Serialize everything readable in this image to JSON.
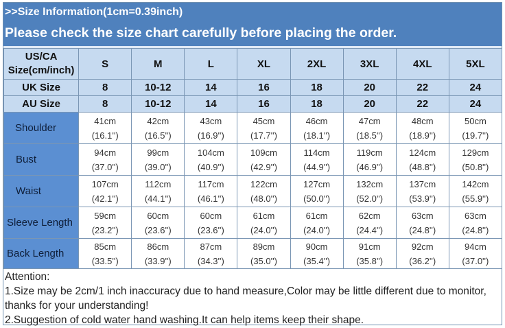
{
  "header": {
    "title": ">>Size Information(1cm=0.39inch)",
    "subtitle": "Please check the size chart carefully before placing the order."
  },
  "table": {
    "corner": [
      "US/CA",
      "Size(cm/inch)"
    ],
    "sizes": [
      "S",
      "M",
      "L",
      "XL",
      "2XL",
      "3XL",
      "4XL",
      "5XL"
    ],
    "uk": {
      "label": "UK Size",
      "values": [
        "8",
        "10-12",
        "14",
        "16",
        "18",
        "20",
        "22",
        "24"
      ]
    },
    "au": {
      "label": "AU Size",
      "values": [
        "8",
        "10-12",
        "14",
        "16",
        "18",
        "20",
        "22",
        "24"
      ]
    },
    "rows": [
      {
        "label": "Shoulder",
        "cm": [
          "41cm",
          "42cm",
          "43cm",
          "45cm",
          "46cm",
          "47cm",
          "48cm",
          "50cm"
        ],
        "inch": [
          "(16.1'')",
          "(16.5'')",
          "(16.9'')",
          "(17.7'')",
          "(18.1'')",
          "(18.5'')",
          "(18.9'')",
          "(19.7'')"
        ]
      },
      {
        "label": "Bust",
        "cm": [
          "94cm",
          "99cm",
          "104cm",
          "109cm",
          "114cm",
          "119cm",
          "124cm",
          "129cm"
        ],
        "inch": [
          "(37.0'')",
          "(39.0'')",
          "(40.9'')",
          "(42.9'')",
          "(44.9'')",
          "(46.9'')",
          "(48.8'')",
          "(50.8'')"
        ]
      },
      {
        "label": "Waist",
        "cm": [
          "107cm",
          "112cm",
          "117cm",
          "122cm",
          "127cm",
          "132cm",
          "137cm",
          "142cm"
        ],
        "inch": [
          "(42.1'')",
          "(44.1'')",
          "(46.1'')",
          "(48.0'')",
          "(50.0'')",
          "(52.0'')",
          "(53.9'')",
          "(55.9'')"
        ]
      },
      {
        "label": "Sleeve Length",
        "cm": [
          "59cm",
          "60cm",
          "60cm",
          "61cm",
          "61cm",
          "62cm",
          "63cm",
          "63cm"
        ],
        "inch": [
          "(23.2'')",
          "(23.6'')",
          "(23.6'')",
          "(24.0'')",
          "(24.0'')",
          "(24.4'')",
          "(24.8'')",
          "(24.8'')"
        ]
      },
      {
        "label": "Back Length",
        "cm": [
          "85cm",
          "86cm",
          "87cm",
          "89cm",
          "90cm",
          "91cm",
          "92cm",
          "94cm"
        ],
        "inch": [
          "(33.5'')",
          "(33.9'')",
          "(34.3'')",
          "(35.0'')",
          "(35.4'')",
          "(35.8'')",
          "(36.2'')",
          "(37.0'')"
        ]
      }
    ]
  },
  "notes": [
    "Attention:",
    "1.Size may be 2cm/1 inch inaccuracy due to hand measure,Color may be little different due to monitor,",
    "thanks for your understanding!",
    "2.Suggestion of cold water hand washing.It can help items keep their shape."
  ],
  "colors": {
    "header": "#4f81bd",
    "size_header": "#c6daf0",
    "row_label": "#5b8fd2"
  }
}
